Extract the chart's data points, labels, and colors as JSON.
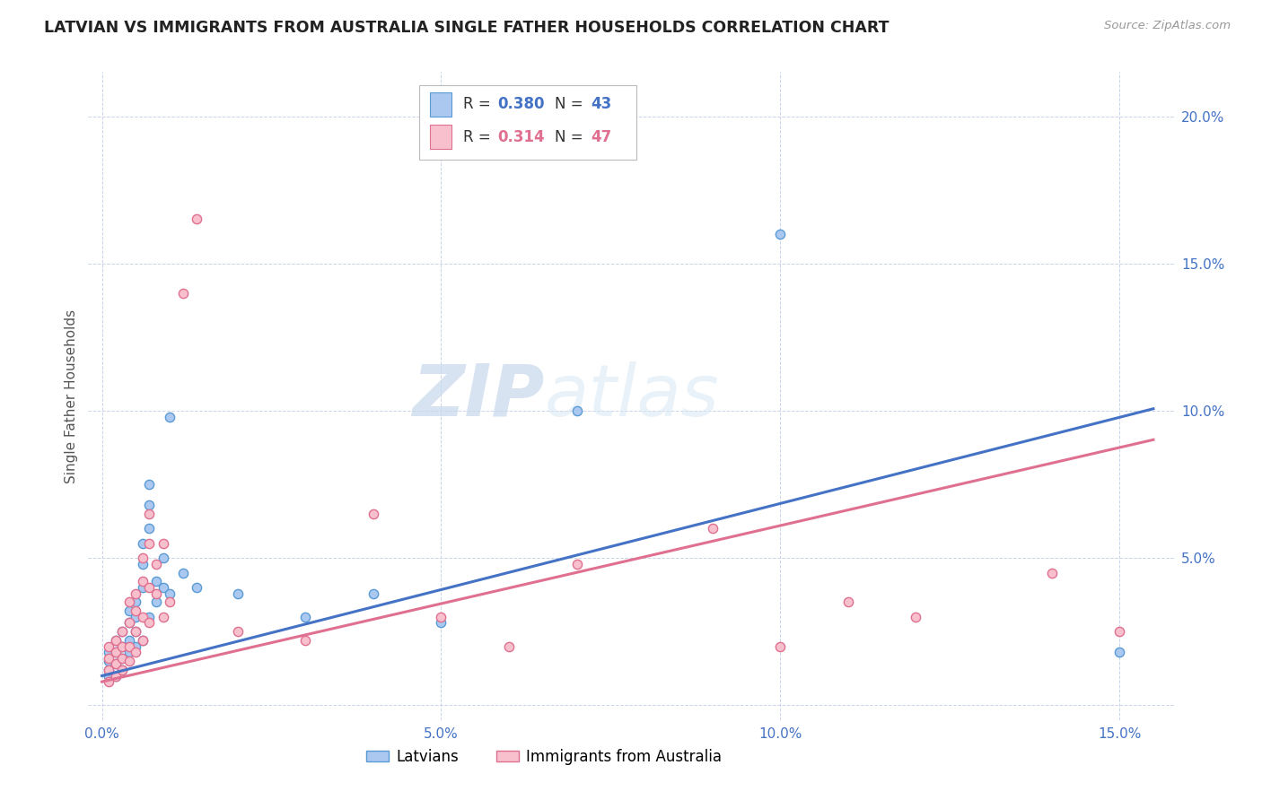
{
  "title": "LATVIAN VS IMMIGRANTS FROM AUSTRALIA SINGLE FATHER HOUSEHOLDS CORRELATION CHART",
  "source_text": "Source: ZipAtlas.com",
  "xlim": [
    -0.002,
    0.158
  ],
  "ylim": [
    -0.005,
    0.215
  ],
  "ylabel": "Single Father Households",
  "x_tick_vals": [
    0.0,
    0.05,
    0.1,
    0.15
  ],
  "y_tick_vals": [
    0.0,
    0.05,
    0.1,
    0.15,
    0.2
  ],
  "legend_entries": [
    {
      "label": "Latvians",
      "color": "#aac8f0",
      "edge": "#5b9bd5",
      "R": "0.380",
      "N": "43"
    },
    {
      "label": "Immigrants from Australia",
      "color": "#f8c0cc",
      "edge": "#e07090",
      "R": "0.314",
      "N": "47"
    }
  ],
  "trend_latvian": {
    "color": "#4472c4",
    "slope": 0.585,
    "intercept": 0.01
  },
  "trend_australia": {
    "color": "#e07090",
    "slope": 0.53,
    "intercept": 0.008
  },
  "watermark_zip": "ZIP",
  "watermark_atlas": "atlas",
  "background_color": "#ffffff",
  "grid_color": "#c8d4e8",
  "latvian_scatter": [
    [
      0.001,
      0.01
    ],
    [
      0.001,
      0.012
    ],
    [
      0.001,
      0.015
    ],
    [
      0.001,
      0.018
    ],
    [
      0.002,
      0.01
    ],
    [
      0.002,
      0.014
    ],
    [
      0.002,
      0.018
    ],
    [
      0.002,
      0.022
    ],
    [
      0.003,
      0.012
    ],
    [
      0.003,
      0.016
    ],
    [
      0.003,
      0.02
    ],
    [
      0.003,
      0.025
    ],
    [
      0.004,
      0.018
    ],
    [
      0.004,
      0.022
    ],
    [
      0.004,
      0.028
    ],
    [
      0.004,
      0.032
    ],
    [
      0.005,
      0.02
    ],
    [
      0.005,
      0.025
    ],
    [
      0.005,
      0.03
    ],
    [
      0.005,
      0.035
    ],
    [
      0.006,
      0.022
    ],
    [
      0.006,
      0.04
    ],
    [
      0.006,
      0.048
    ],
    [
      0.006,
      0.055
    ],
    [
      0.007,
      0.03
    ],
    [
      0.007,
      0.06
    ],
    [
      0.007,
      0.068
    ],
    [
      0.007,
      0.075
    ],
    [
      0.008,
      0.035
    ],
    [
      0.008,
      0.042
    ],
    [
      0.009,
      0.04
    ],
    [
      0.009,
      0.05
    ],
    [
      0.01,
      0.038
    ],
    [
      0.01,
      0.098
    ],
    [
      0.012,
      0.045
    ],
    [
      0.014,
      0.04
    ],
    [
      0.02,
      0.038
    ],
    [
      0.03,
      0.03
    ],
    [
      0.04,
      0.038
    ],
    [
      0.05,
      0.028
    ],
    [
      0.07,
      0.1
    ],
    [
      0.1,
      0.16
    ],
    [
      0.15,
      0.018
    ]
  ],
  "australia_scatter": [
    [
      0.001,
      0.008
    ],
    [
      0.001,
      0.012
    ],
    [
      0.001,
      0.016
    ],
    [
      0.001,
      0.02
    ],
    [
      0.002,
      0.01
    ],
    [
      0.002,
      0.014
    ],
    [
      0.002,
      0.018
    ],
    [
      0.002,
      0.022
    ],
    [
      0.003,
      0.012
    ],
    [
      0.003,
      0.016
    ],
    [
      0.003,
      0.02
    ],
    [
      0.003,
      0.025
    ],
    [
      0.004,
      0.015
    ],
    [
      0.004,
      0.02
    ],
    [
      0.004,
      0.028
    ],
    [
      0.004,
      0.035
    ],
    [
      0.005,
      0.018
    ],
    [
      0.005,
      0.025
    ],
    [
      0.005,
      0.032
    ],
    [
      0.005,
      0.038
    ],
    [
      0.006,
      0.022
    ],
    [
      0.006,
      0.03
    ],
    [
      0.006,
      0.042
    ],
    [
      0.006,
      0.05
    ],
    [
      0.007,
      0.028
    ],
    [
      0.007,
      0.04
    ],
    [
      0.007,
      0.055
    ],
    [
      0.007,
      0.065
    ],
    [
      0.008,
      0.038
    ],
    [
      0.008,
      0.048
    ],
    [
      0.009,
      0.03
    ],
    [
      0.009,
      0.055
    ],
    [
      0.01,
      0.035
    ],
    [
      0.012,
      0.14
    ],
    [
      0.014,
      0.165
    ],
    [
      0.02,
      0.025
    ],
    [
      0.03,
      0.022
    ],
    [
      0.04,
      0.065
    ],
    [
      0.05,
      0.03
    ],
    [
      0.06,
      0.02
    ],
    [
      0.07,
      0.048
    ],
    [
      0.09,
      0.06
    ],
    [
      0.1,
      0.02
    ],
    [
      0.11,
      0.035
    ],
    [
      0.12,
      0.03
    ],
    [
      0.14,
      0.045
    ],
    [
      0.15,
      0.025
    ]
  ],
  "title_fontsize": 12.5,
  "axis_fontsize": 11,
  "tick_fontsize": 11,
  "dot_size": 55,
  "legend_R_color_blue": "#4472c4",
  "legend_R_color_pink": "#e07090",
  "legend_N_color_blue": "#4472c4",
  "legend_N_color_pink": "#e07090"
}
